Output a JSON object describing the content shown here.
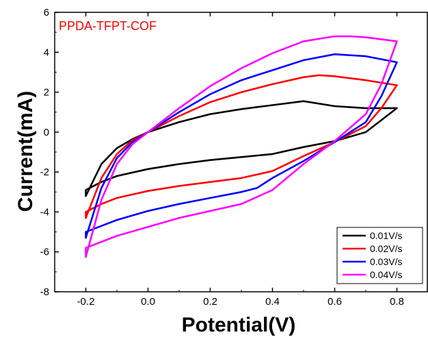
{
  "chart_data": {
    "type": "line",
    "title": "",
    "annotation": {
      "text": "PPDA-TFPT-COF",
      "color": "#ff0000"
    },
    "xlabel": "Potential(V)",
    "ylabel": "Current(mA)",
    "xlim": [
      -0.3,
      0.9
    ],
    "ylim": [
      -8,
      6
    ],
    "xticks": [
      -0.2,
      0.0,
      0.2,
      0.4,
      0.6,
      0.8
    ],
    "xtick_labels": [
      "-0.2",
      "0.0",
      "0.2",
      "0.4",
      "0.6",
      "0.8"
    ],
    "yticks": [
      -8,
      -6,
      -4,
      -2,
      0,
      2,
      4,
      6
    ],
    "ytick_labels": [
      "-8",
      "-6",
      "-4",
      "-2",
      "0",
      "2",
      "4",
      "6"
    ],
    "grid": false,
    "legend_position": "bottom-right",
    "series": [
      {
        "name": "0.01V/s",
        "color": "#000000",
        "x": [
          -0.2,
          -0.15,
          -0.1,
          -0.05,
          0.0,
          0.1,
          0.2,
          0.3,
          0.4,
          0.5,
          0.6,
          0.7,
          0.8,
          0.8,
          0.75,
          0.7,
          0.6,
          0.5,
          0.4,
          0.3,
          0.2,
          0.1,
          0.0,
          -0.1,
          -0.15,
          -0.2,
          -0.2
        ],
        "y": [
          -3.2,
          -1.6,
          -0.8,
          -0.35,
          0.0,
          0.5,
          0.9,
          1.15,
          1.35,
          1.55,
          1.3,
          1.2,
          1.2,
          1.2,
          0.6,
          0.0,
          -0.45,
          -0.75,
          -1.1,
          -1.25,
          -1.4,
          -1.6,
          -1.85,
          -2.2,
          -2.5,
          -2.9,
          -3.2
        ]
      },
      {
        "name": "0.02V/s",
        "color": "#ff0000",
        "x": [
          -0.2,
          -0.15,
          -0.1,
          -0.05,
          0.0,
          0.1,
          0.2,
          0.3,
          0.4,
          0.5,
          0.55,
          0.6,
          0.7,
          0.8,
          0.8,
          0.75,
          0.7,
          0.6,
          0.5,
          0.4,
          0.3,
          0.2,
          0.1,
          0.0,
          -0.1,
          -0.15,
          -0.2,
          -0.2
        ],
        "y": [
          -4.3,
          -2.3,
          -1.1,
          -0.4,
          0.0,
          0.8,
          1.5,
          2.0,
          2.4,
          2.75,
          2.85,
          2.8,
          2.6,
          2.35,
          2.35,
          1.2,
          0.3,
          -0.5,
          -1.2,
          -1.95,
          -2.3,
          -2.5,
          -2.7,
          -2.95,
          -3.3,
          -3.6,
          -4.0,
          -4.3
        ]
      },
      {
        "name": "0.03V/s",
        "color": "#0000ff",
        "x": [
          -0.2,
          -0.15,
          -0.1,
          -0.05,
          0.0,
          0.1,
          0.2,
          0.3,
          0.4,
          0.5,
          0.6,
          0.7,
          0.8,
          0.8,
          0.75,
          0.7,
          0.6,
          0.5,
          0.4,
          0.35,
          0.3,
          0.2,
          0.1,
          0.0,
          -0.1,
          -0.15,
          -0.2,
          -0.2
        ],
        "y": [
          -5.3,
          -2.8,
          -1.3,
          -0.5,
          0.0,
          1.0,
          1.9,
          2.6,
          3.1,
          3.6,
          3.9,
          3.8,
          3.5,
          3.5,
          1.8,
          0.5,
          -0.5,
          -1.45,
          -2.3,
          -2.8,
          -3.0,
          -3.3,
          -3.6,
          -3.95,
          -4.4,
          -4.7,
          -5.0,
          -5.3
        ]
      },
      {
        "name": "0.04V/s",
        "color": "#ff00ff",
        "x": [
          -0.2,
          -0.15,
          -0.1,
          -0.05,
          0.0,
          0.1,
          0.2,
          0.3,
          0.4,
          0.5,
          0.6,
          0.65,
          0.7,
          0.8,
          0.8,
          0.75,
          0.7,
          0.6,
          0.5,
          0.4,
          0.3,
          0.2,
          0.1,
          0.0,
          -0.1,
          -0.15,
          -0.2,
          -0.2
        ],
        "y": [
          -6.25,
          -3.4,
          -1.6,
          -0.6,
          0.0,
          1.2,
          2.3,
          3.2,
          3.95,
          4.55,
          4.8,
          4.8,
          4.75,
          4.55,
          4.55,
          2.4,
          0.9,
          -0.45,
          -1.6,
          -2.9,
          -3.6,
          -3.95,
          -4.3,
          -4.75,
          -5.2,
          -5.5,
          -5.8,
          -6.25
        ]
      }
    ]
  }
}
